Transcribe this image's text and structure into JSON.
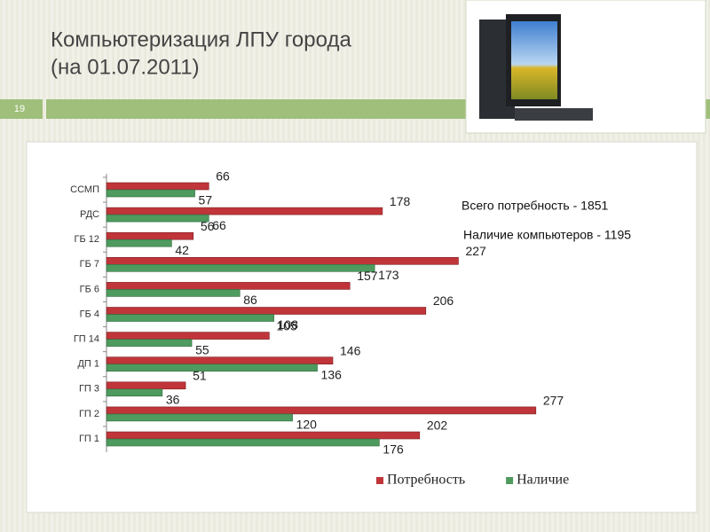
{
  "slide": {
    "title": "Компьютеризация ЛПУ города",
    "subtitle": "(на 01.07.2011)",
    "number": "19"
  },
  "chart_data": {
    "type": "bar",
    "categories": [
      "ССМП",
      "РДС",
      "ГБ 12",
      "ГБ 7",
      "ГБ 6",
      "ГБ 4",
      "ГП 14",
      "ДП 1",
      "ГП 3",
      "ГП 2",
      "ГП 1"
    ],
    "series": [
      {
        "name": "Потребность",
        "color": "#c0353a",
        "values": [
          66,
          178,
          56,
          227,
          157,
          206,
          105,
          146,
          51,
          277,
          202
        ]
      },
      {
        "name": "Наличие",
        "color": "#4e9a5f",
        "values": [
          57,
          66,
          42,
          173,
          86,
          108,
          55,
          136,
          36,
          120,
          176
        ]
      }
    ],
    "xlim": [
      0,
      300
    ],
    "annotations": [
      "Всего потребность - 1851",
      "Наличие компьютеров - 1195"
    ],
    "legend": "bottom"
  }
}
